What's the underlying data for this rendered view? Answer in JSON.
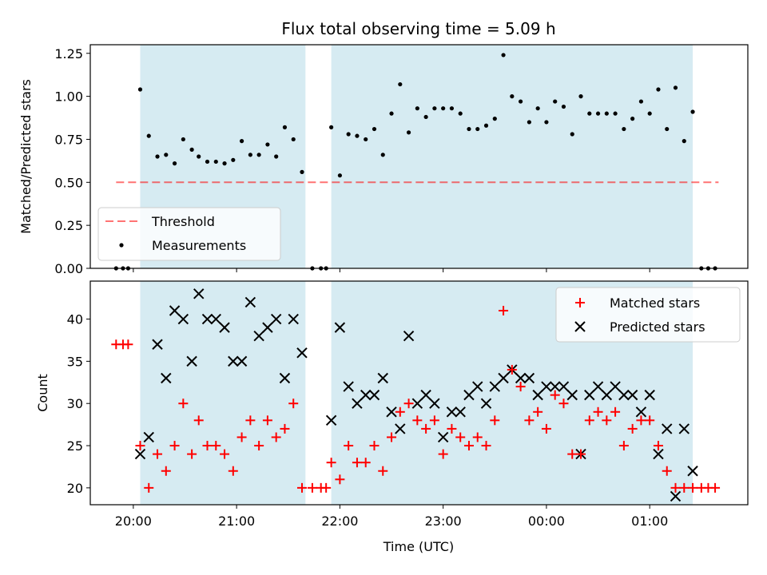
{
  "colors": {
    "shade": "#add8e6",
    "threshold": "#ff0000",
    "matched": "#ff0000",
    "predicted": "#000000",
    "measurement": "#000000"
  },
  "chart_data": [
    {
      "type": "scatter",
      "title": "Flux total observing time = 5.09 h",
      "ylabel": "Matched/Predicted stars",
      "xlabel": "",
      "xlim": [
        "19:35",
        "01:57"
      ],
      "ylim": [
        0,
        1.3
      ],
      "yticks": [
        "0.00",
        "0.25",
        "0.50",
        "0.75",
        "1.00",
        "1.25"
      ],
      "legend": {
        "position": "lower-left",
        "entries": [
          "Threshold",
          "Measurements"
        ]
      },
      "shaded_intervals": [
        [
          "20:04",
          "21:40"
        ],
        [
          "21:55",
          "01:25"
        ]
      ],
      "threshold": {
        "name": "Threshold",
        "y": 0.5,
        "x_range": [
          "19:50",
          "01:40"
        ]
      },
      "series": [
        {
          "name": "Measurements",
          "x": [
            "19:50",
            "19:54",
            "19:57",
            "20:04",
            "20:09",
            "20:14",
            "20:19",
            "20:24",
            "20:29",
            "20:34",
            "20:38",
            "20:43",
            "20:48",
            "20:53",
            "20:58",
            "21:03",
            "21:08",
            "21:13",
            "21:18",
            "21:23",
            "21:28",
            "21:33",
            "21:38",
            "21:44",
            "21:49",
            "21:52",
            "21:55",
            "22:00",
            "22:05",
            "22:10",
            "22:15",
            "22:20",
            "22:25",
            "22:30",
            "22:35",
            "22:40",
            "22:45",
            "22:50",
            "22:55",
            "23:00",
            "23:05",
            "23:10",
            "23:15",
            "23:20",
            "23:25",
            "23:30",
            "23:35",
            "23:40",
            "23:45",
            "23:50",
            "23:55",
            "00:00",
            "00:05",
            "00:10",
            "00:15",
            "00:20",
            "00:25",
            "00:30",
            "00:35",
            "00:40",
            "00:45",
            "00:50",
            "00:55",
            "01:00",
            "01:05",
            "01:10",
            "01:15",
            "01:20",
            "01:25",
            "01:30",
            "01:34",
            "01:38"
          ],
          "values": [
            0.0,
            0.0,
            0.0,
            1.04,
            0.77,
            0.65,
            0.66,
            0.61,
            0.75,
            0.69,
            0.65,
            0.62,
            0.62,
            0.61,
            0.63,
            0.74,
            0.66,
            0.66,
            0.72,
            0.65,
            0.82,
            0.75,
            0.56,
            0.0,
            0.0,
            0.0,
            0.82,
            0.54,
            0.78,
            0.77,
            0.75,
            0.81,
            0.66,
            0.9,
            1.07,
            0.79,
            0.93,
            0.88,
            0.93,
            0.93,
            0.93,
            0.9,
            0.81,
            0.81,
            0.83,
            0.87,
            1.24,
            1.0,
            0.97,
            0.85,
            0.93,
            0.85,
            0.97,
            0.94,
            0.78,
            1.0,
            0.9,
            0.9,
            0.9,
            0.9,
            0.81,
            0.87,
            0.97,
            0.9,
            1.04,
            0.81,
            1.05,
            0.74,
            0.91,
            0.0,
            0.0,
            0.0
          ]
        }
      ]
    },
    {
      "type": "scatter",
      "title": "",
      "xlabel": "Time (UTC)",
      "ylabel": "Count",
      "xlim": [
        "19:35",
        "01:57"
      ],
      "ylim": [
        18,
        44.5
      ],
      "xticks": [
        "20:00",
        "21:00",
        "22:00",
        "23:00",
        "00:00",
        "01:00"
      ],
      "yticks": [
        "20",
        "25",
        "30",
        "35",
        "40"
      ],
      "legend": {
        "position": "upper-right",
        "entries": [
          "Matched stars",
          "Predicted stars"
        ]
      },
      "shaded_intervals": [
        [
          "20:04",
          "21:40"
        ],
        [
          "21:55",
          "01:25"
        ]
      ],
      "series": [
        {
          "name": "Matched stars",
          "marker": "plus",
          "x": [
            "19:50",
            "19:54",
            "19:57",
            "20:04",
            "20:09",
            "20:14",
            "20:19",
            "20:24",
            "20:29",
            "20:34",
            "20:38",
            "20:43",
            "20:48",
            "20:53",
            "20:58",
            "21:03",
            "21:08",
            "21:13",
            "21:18",
            "21:23",
            "21:28",
            "21:33",
            "21:38",
            "21:44",
            "21:49",
            "21:52",
            "21:55",
            "22:00",
            "22:05",
            "22:10",
            "22:15",
            "22:20",
            "22:25",
            "22:30",
            "22:35",
            "22:40",
            "22:45",
            "22:50",
            "22:55",
            "23:00",
            "23:05",
            "23:10",
            "23:15",
            "23:20",
            "23:25",
            "23:30",
            "23:35",
            "23:40",
            "23:45",
            "23:50",
            "23:55",
            "00:00",
            "00:05",
            "00:10",
            "00:15",
            "00:20",
            "00:25",
            "00:30",
            "00:35",
            "00:40",
            "00:45",
            "00:50",
            "00:55",
            "01:00",
            "01:05",
            "01:10",
            "01:15",
            "01:20",
            "01:25",
            "01:30",
            "01:34",
            "01:38"
          ],
          "values": [
            37,
            37,
            37,
            25,
            20,
            24,
            22,
            25,
            30,
            24,
            28,
            25,
            25,
            24,
            22,
            26,
            28,
            25,
            28,
            26,
            27,
            30,
            20,
            20,
            20,
            20,
            23,
            21,
            25,
            23,
            23,
            25,
            22,
            26,
            29,
            30,
            28,
            27,
            28,
            24,
            27,
            26,
            25,
            26,
            25,
            28,
            41,
            34,
            32,
            28,
            29,
            27,
            31,
            30,
            24,
            24,
            28,
            29,
            28,
            29,
            25,
            27,
            28,
            28,
            25,
            22,
            20,
            20,
            20,
            20,
            20,
            20
          ]
        },
        {
          "name": "Predicted stars",
          "marker": "x",
          "x": [
            "20:04",
            "20:09",
            "20:14",
            "20:19",
            "20:24",
            "20:29",
            "20:34",
            "20:38",
            "20:43",
            "20:48",
            "20:53",
            "20:58",
            "21:03",
            "21:08",
            "21:13",
            "21:18",
            "21:23",
            "21:28",
            "21:33",
            "21:38",
            "21:55",
            "22:00",
            "22:05",
            "22:10",
            "22:15",
            "22:20",
            "22:25",
            "22:30",
            "22:35",
            "22:40",
            "22:45",
            "22:50",
            "22:55",
            "23:00",
            "23:05",
            "23:10",
            "23:15",
            "23:20",
            "23:25",
            "23:30",
            "23:35",
            "23:40",
            "23:45",
            "23:50",
            "23:55",
            "00:00",
            "00:05",
            "00:10",
            "00:15",
            "00:20",
            "00:25",
            "00:30",
            "00:35",
            "00:40",
            "00:45",
            "00:50",
            "00:55",
            "01:00",
            "01:05",
            "01:10",
            "01:15",
            "01:20",
            "01:25"
          ],
          "values": [
            24,
            26,
            37,
            33,
            41,
            40,
            35,
            43,
            40,
            40,
            39,
            35,
            35,
            42,
            38,
            39,
            40,
            33,
            40,
            36,
            28,
            39,
            32,
            30,
            31,
            31,
            33,
            29,
            27,
            38,
            30,
            31,
            30,
            26,
            29,
            29,
            31,
            32,
            30,
            32,
            33,
            34,
            33,
            33,
            31,
            32,
            32,
            32,
            31,
            24,
            31,
            32,
            31,
            32,
            31,
            31,
            29,
            31,
            24,
            27,
            19,
            27,
            22
          ]
        }
      ]
    }
  ]
}
